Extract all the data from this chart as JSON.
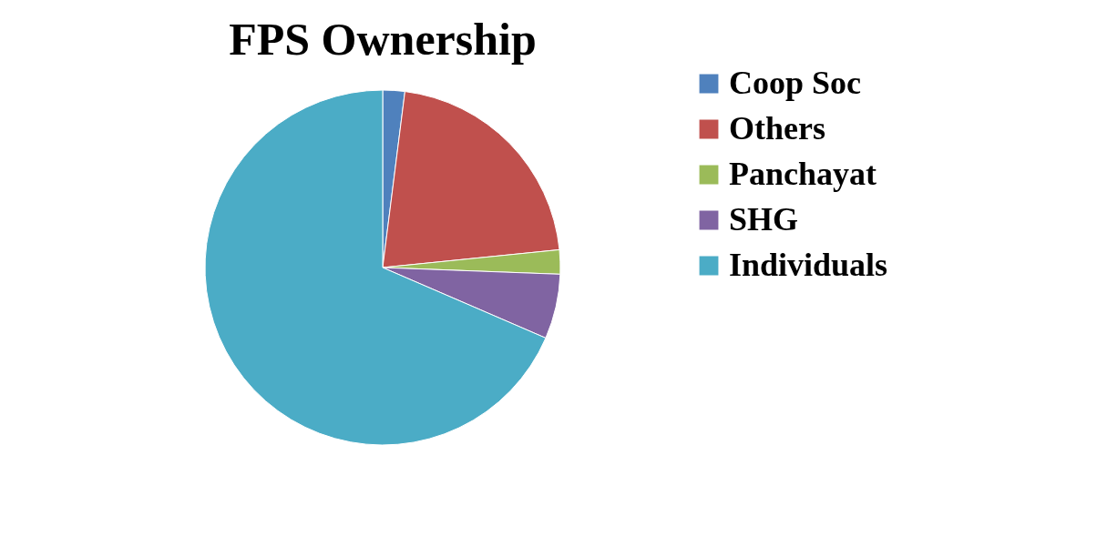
{
  "chart_data": {
    "type": "pie",
    "title": "FPS Ownership",
    "categories": [
      "Coop Soc",
      "Others",
      "Panchayat",
      "SHG",
      "Individuals"
    ],
    "values": [
      2.0,
      21.4,
      2.2,
      5.9,
      68.5
    ],
    "colors": [
      "#4f81bd",
      "#c0504d",
      "#9bbb59",
      "#8064a2",
      "#4bacc6"
    ],
    "legend": "right"
  }
}
